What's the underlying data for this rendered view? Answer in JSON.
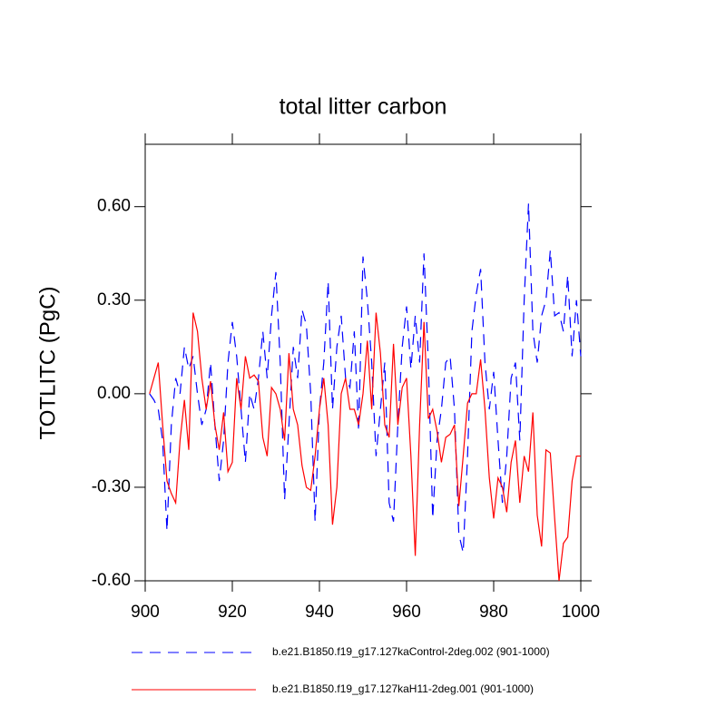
{
  "chart_data": {
    "type": "line",
    "title": "total litter carbon",
    "ylabel": "TOTLITC  (PgC)",
    "xlim": [
      900,
      1000
    ],
    "xticks": [
      900,
      920,
      940,
      960,
      980,
      1000
    ],
    "ylim": [
      -0.6,
      0.8
    ],
    "yticks": [
      {
        "value": -0.6,
        "label": "-0.60"
      },
      {
        "value": -0.3,
        "label": "-0.30"
      },
      {
        "value": 0,
        "label": "0.00"
      },
      {
        "value": 0.3,
        "label": "0.30"
      },
      {
        "value": 0.6,
        "label": "0.60"
      }
    ],
    "x": [
      901,
      902,
      903,
      904,
      905,
      906,
      907,
      908,
      909,
      910,
      911,
      912,
      913,
      914,
      915,
      916,
      917,
      918,
      919,
      920,
      921,
      922,
      923,
      924,
      925,
      926,
      927,
      928,
      929,
      930,
      931,
      932,
      933,
      934,
      935,
      936,
      937,
      938,
      939,
      940,
      941,
      942,
      943,
      944,
      945,
      946,
      947,
      948,
      949,
      950,
      951,
      952,
      953,
      954,
      955,
      956,
      957,
      958,
      959,
      960,
      961,
      962,
      963,
      964,
      965,
      966,
      967,
      968,
      969,
      970,
      971,
      972,
      973,
      974,
      975,
      976,
      977,
      978,
      979,
      980,
      981,
      982,
      983,
      984,
      985,
      986,
      987,
      988,
      989,
      990,
      991,
      992,
      993,
      994,
      995,
      996,
      997,
      998,
      999,
      1000
    ],
    "series": [
      {
        "name": "b.e21.B1850.f19_g17.127kaControl-2deg.002 (901-1000)",
        "color": "#0000ff",
        "dash": true,
        "values": [
          0.0,
          -0.02,
          -0.05,
          -0.15,
          -0.44,
          -0.1,
          0.05,
          0.0,
          0.15,
          0.08,
          0.12,
          0.0,
          -0.1,
          -0.05,
          0.1,
          -0.1,
          -0.28,
          -0.15,
          0.1,
          0.23,
          0.12,
          -0.05,
          -0.22,
          0.0,
          -0.05,
          0.05,
          0.2,
          0.05,
          0.25,
          0.39,
          0.1,
          -0.34,
          -0.1,
          0.15,
          0.05,
          0.27,
          0.22,
          0.0,
          -0.41,
          -0.05,
          0.1,
          0.36,
          -0.05,
          0.15,
          0.25,
          0.05,
          0.02,
          0.2,
          -0.12,
          0.44,
          0.3,
          0.1,
          -0.2,
          -0.05,
          0.1,
          -0.35,
          -0.41,
          -0.1,
          0.15,
          0.28,
          0.08,
          0.25,
          0.1,
          0.45,
          0.1,
          -0.4,
          -0.15,
          -0.05,
          0.1,
          0.12,
          -0.05,
          -0.45,
          -0.51,
          -0.2,
          0.2,
          0.32,
          0.4,
          0.1,
          -0.05,
          0.07,
          -0.15,
          -0.35,
          -0.2,
          0.05,
          0.1,
          -0.15,
          0.3,
          0.61,
          0.2,
          0.1,
          0.25,
          0.3,
          0.46,
          0.25,
          0.26,
          0.2,
          0.38,
          0.12,
          0.3,
          0.12
        ]
      },
      {
        "name": "b.e21.B1850.f19_g17.127kaH11-2deg.001 (901-1000)",
        "color": "#ff0000",
        "dash": false,
        "values": [
          0.0,
          0.05,
          0.1,
          -0.1,
          -0.28,
          -0.32,
          -0.35,
          -0.15,
          -0.02,
          -0.18,
          0.26,
          0.2,
          0.05,
          -0.05,
          0.04,
          -0.1,
          -0.18,
          -0.06,
          -0.25,
          -0.22,
          0.05,
          -0.05,
          0.12,
          0.05,
          0.06,
          0.04,
          -0.14,
          -0.2,
          0.02,
          0.0,
          -0.05,
          -0.15,
          0.13,
          -0.05,
          -0.1,
          -0.23,
          -0.3,
          -0.31,
          -0.2,
          -0.05,
          0.05,
          -0.1,
          -0.42,
          -0.3,
          0.0,
          0.05,
          -0.05,
          -0.05,
          -0.1,
          0.0,
          0.17,
          -0.05,
          0.26,
          0.13,
          -0.1,
          -0.14,
          0.16,
          -0.1,
          0.02,
          0.05,
          -0.2,
          -0.52,
          -0.1,
          0.23,
          -0.08,
          -0.05,
          -0.12,
          -0.22,
          -0.14,
          -0.13,
          -0.1,
          -0.36,
          -0.2,
          -0.03,
          0.0,
          0.0,
          0.11,
          -0.05,
          -0.27,
          -0.4,
          -0.27,
          -0.3,
          -0.38,
          -0.22,
          -0.15,
          -0.35,
          -0.2,
          -0.25,
          -0.06,
          -0.39,
          -0.49,
          -0.18,
          -0.19,
          -0.4,
          -0.6,
          -0.48,
          -0.46,
          -0.28,
          -0.2,
          -0.2
        ]
      }
    ]
  }
}
